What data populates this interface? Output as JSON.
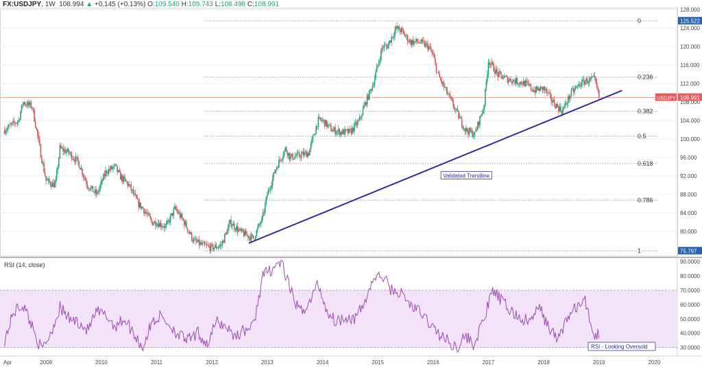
{
  "header": {
    "symbol": "FX:USDJPY",
    "interval": "1W",
    "last": "108.994",
    "change_arrow": "▲",
    "change": "+0.145 (+0.13%)",
    "open_label": "O:",
    "open": "109.540",
    "high_label": "H:",
    "high": "109.743",
    "low_label": "L:",
    "low": "108.498",
    "close_label": "C:",
    "close": "108.991"
  },
  "chart_data": [
    {
      "type": "line",
      "series": [
        {
          "x": [
            "2008-04",
            "2008-07",
            "2008-08",
            "2008-10",
            "2008-12",
            "2009-01",
            "2009-03",
            "2009-04",
            "2009-06",
            "2009-08",
            "2009-10",
            "2009-12",
            "2010-02",
            "2010-04",
            "2010-05",
            "2010-07",
            "2010-09",
            "2010-10",
            "2010-12",
            "2011-01",
            "2011-03",
            "2011-05",
            "2011-07",
            "2011-09",
            "2011-11",
            "2012-01",
            "2012-03",
            "2012-05",
            "2012-07",
            "2012-09",
            "2012-10",
            "2012-12",
            "2013-01",
            "2013-03",
            "2013-05",
            "2013-06",
            "2013-08",
            "2013-10",
            "2013-12",
            "2014-01",
            "2014-03",
            "2014-05",
            "2014-07",
            "2014-09",
            "2014-10",
            "2014-12",
            "2015-02",
            "2015-03",
            "2015-05",
            "2015-06",
            "2015-08",
            "2015-10",
            "2015-12",
            "2016-01",
            "2016-02",
            "2016-04",
            "2016-06",
            "2016-08",
            "2016-10",
            "2016-12",
            "2017-01",
            "2017-03",
            "2017-05",
            "2017-07",
            "2017-09",
            "2017-11",
            "2018-01",
            "2018-03",
            "2018-05",
            "2018-07",
            "2018-09",
            "2018-10",
            "2018-12",
            "2019-01"
          ],
          "values": [
            102,
            104,
            108,
            107,
            96,
            91,
            90,
            98,
            97,
            95,
            90,
            88,
            93,
            94,
            92,
            90,
            86,
            85,
            82,
            82,
            81,
            85,
            82,
            78,
            77,
            76.5,
            77,
            82,
            80,
            79,
            78.5,
            83,
            88,
            94,
            98,
            96,
            96.5,
            97,
            104,
            104,
            102,
            101.5,
            101.5,
            104,
            107,
            112,
            120,
            120,
            124,
            123.5,
            121,
            121,
            120,
            118,
            114,
            110,
            106,
            102,
            101,
            107,
            117,
            114,
            113,
            112.5,
            112,
            110.5,
            111,
            108,
            106,
            110,
            112,
            112.5,
            113,
            108.99
          ]
        }
      ],
      "xlabel": "",
      "ylabel": "",
      "ylim": [
        75,
        128
      ],
      "xlim": [
        "2008-03",
        "2020-06"
      ],
      "x_tick_labels": [
        "Apr",
        "2009",
        "2010",
        "2011",
        "2012",
        "2013",
        "2014",
        "2015",
        "2016",
        "2017",
        "2018",
        "2019",
        "2020"
      ],
      "y_tick_labels": [
        "80.000",
        "84.000",
        "88.000",
        "92.000",
        "96.000",
        "100.000",
        "104.000",
        "108.000",
        "112.000",
        "116.000",
        "120.000",
        "124.000",
        "128.000"
      ],
      "price_badges": [
        {
          "label": "125.522",
          "value": 125.522,
          "color": "#2962b0"
        },
        {
          "label": "108.991",
          "value": 108.991,
          "color": "#e35b5b"
        },
        {
          "label": "75.797",
          "value": 75.797,
          "color": "#2962b0"
        }
      ],
      "symbol_tag": "USDJPY",
      "fibonacci": {
        "levels": [
          {
            "label": "0",
            "value": 125.522
          },
          {
            "label": "0.236",
            "value": 113.4
          },
          {
            "label": "0.382",
            "value": 106.0
          },
          {
            "label": "0.5",
            "value": 100.6
          },
          {
            "label": "0.618",
            "value": 94.7
          },
          {
            "label": "0.786",
            "value": 86.8
          },
          {
            "label": "1",
            "value": 75.797
          }
        ]
      },
      "trendline": {
        "x": [
          "2012-09",
          "2019-06"
        ],
        "y": [
          77.5,
          110.5
        ],
        "color": "#2b2b9a"
      },
      "annotations": [
        {
          "text": "Validated Trendline",
          "x": "2016-03",
          "y": 91.8
        }
      ],
      "grid": true,
      "legend": "none"
    },
    {
      "type": "line",
      "title": "RSI (14, close)",
      "series": [
        {
          "x": [
            "2008-04",
            "2008-06",
            "2008-08",
            "2008-10",
            "2008-12",
            "2009-02",
            "2009-04",
            "2009-06",
            "2009-08",
            "2009-10",
            "2009-12",
            "2010-02",
            "2010-04",
            "2010-06",
            "2010-08",
            "2010-10",
            "2010-12",
            "2011-02",
            "2011-04",
            "2011-06",
            "2011-08",
            "2011-10",
            "2011-12",
            "2012-02",
            "2012-04",
            "2012-06",
            "2012-08",
            "2012-10",
            "2012-12",
            "2013-02",
            "2013-04",
            "2013-06",
            "2013-08",
            "2013-10",
            "2013-12",
            "2014-02",
            "2014-04",
            "2014-06",
            "2014-08",
            "2014-10",
            "2014-12",
            "2015-02",
            "2015-04",
            "2015-06",
            "2015-08",
            "2015-10",
            "2015-12",
            "2016-02",
            "2016-04",
            "2016-06",
            "2016-08",
            "2016-10",
            "2016-12",
            "2017-02",
            "2017-04",
            "2017-06",
            "2017-08",
            "2017-10",
            "2017-12",
            "2018-02",
            "2018-04",
            "2018-06",
            "2018-08",
            "2018-10",
            "2018-12",
            "2019-01"
          ],
          "values": [
            35,
            55,
            60,
            45,
            28,
            40,
            58,
            50,
            48,
            42,
            55,
            52,
            45,
            50,
            40,
            30,
            48,
            52,
            45,
            38,
            35,
            40,
            32,
            48,
            45,
            38,
            42,
            45,
            80,
            85,
            90,
            70,
            55,
            60,
            75,
            55,
            48,
            52,
            50,
            60,
            78,
            80,
            70,
            68,
            60,
            55,
            48,
            40,
            35,
            30,
            38,
            32,
            50,
            70,
            62,
            55,
            50,
            48,
            58,
            45,
            35,
            50,
            58,
            62,
            38,
            40
          ]
        }
      ],
      "ylim": [
        25,
        92
      ],
      "y_tick_labels": [
        "30.0000",
        "40.0000",
        "50.0000",
        "60.0000",
        "70.0000",
        "80.0000",
        "90.0000"
      ],
      "bands": {
        "upper": 70,
        "lower": 30
      },
      "annotations": [
        {
          "text": "RSI - Looking Oversold"
        }
      ],
      "legend": "none"
    }
  ],
  "colors": {
    "up": "#26a17a",
    "down": "#c95a5a",
    "rsi_line": "#9a4bb0",
    "rsi_band": "#f3e3f8",
    "fib_line": "#8a8a8a",
    "grid": "#eeeeee"
  }
}
